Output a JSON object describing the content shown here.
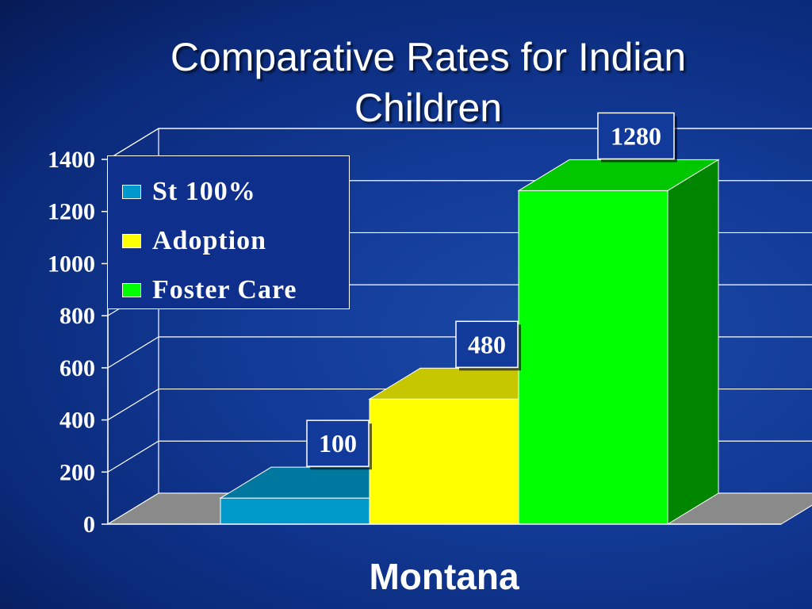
{
  "slide": {
    "title": "Comparative Rates for Indian\nChildren"
  },
  "chart_data": {
    "type": "bar",
    "categories": [
      "Montana"
    ],
    "series": [
      {
        "name": "St 100%",
        "values": [
          100
        ],
        "color": "#0099cc"
      },
      {
        "name": "Adoption",
        "values": [
          480
        ],
        "color": "#ffff00"
      },
      {
        "name": "Foster Care",
        "values": [
          1280
        ],
        "color": "#00ff00"
      }
    ],
    "y_ticks": [
      "0",
      "200",
      "400",
      "600",
      "800",
      "1000",
      "1200",
      "1400"
    ],
    "ylim": [
      0,
      1400
    ],
    "data_labels": [
      "100",
      "480",
      "1280"
    ],
    "grid": true,
    "three_d": true,
    "legend_position": "top-left",
    "title": "",
    "xlabel": "",
    "ylabel": ""
  }
}
